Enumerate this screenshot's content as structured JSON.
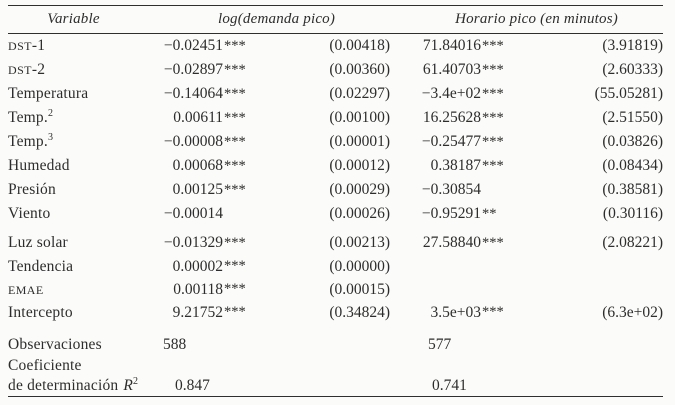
{
  "table": {
    "headers": {
      "variable": "Variable",
      "model1": "log(demanda pico)",
      "model2": "Horario pico (en minutos)"
    },
    "rows": [
      {
        "sc": "DST",
        "label": "-1",
        "coef1": "−0.02451",
        "stars1": "***",
        "se1": "(0.00418)",
        "coef2": "71.84016",
        "stars2": "***",
        "se2": "(3.91819)"
      },
      {
        "sc": "DST",
        "label": "-2",
        "coef1": "−0.02897",
        "stars1": "***",
        "se1": "(0.00360)",
        "coef2": "61.40703",
        "stars2": "***",
        "se2": "(2.60333)"
      },
      {
        "label": "Temperatura",
        "coef1": "−0.14064",
        "stars1": "***",
        "se1": "(0.02297)",
        "coef2": "−3.4e+02",
        "stars2": "***",
        "se2": "(55.05281)"
      },
      {
        "label": "Temp.",
        "sup": "2",
        "coef1": "0.00611",
        "stars1": "***",
        "se1": "(0.00100)",
        "coef2": "16.25628",
        "stars2": "***",
        "se2": "(2.51550)"
      },
      {
        "label": "Temp.",
        "sup": "3",
        "coef1": "−0.00008",
        "stars1": "***",
        "se1": "(0.00001)",
        "coef2": "−0.25477",
        "stars2": "***",
        "se2": "(0.03826)"
      },
      {
        "label": "Humedad",
        "coef1": "0.00068",
        "stars1": "***",
        "se1": "(0.00012)",
        "coef2": "0.38187",
        "stars2": "***",
        "se2": "(0.08434)"
      },
      {
        "label": "Presión",
        "coef1": "0.00125",
        "stars1": "***",
        "se1": "(0.00029)",
        "coef2": "−0.30854",
        "stars2": "",
        "se2": "(0.38581)"
      },
      {
        "label": "Viento",
        "coef1": "−0.00014",
        "stars1": "",
        "se1": "(0.00026)",
        "coef2": "−0.95291",
        "stars2": "**",
        "se2": "(0.30116)"
      },
      {
        "label": "Luz solar",
        "coef1": "−0.01329",
        "stars1": "***",
        "se1": "(0.00213)",
        "coef2": "27.58840",
        "stars2": "***",
        "se2": "(2.08221)"
      },
      {
        "label": "Tendencia",
        "coef1": "0.00002",
        "stars1": "***",
        "se1": "(0.00000)",
        "coef2": "",
        "stars2": "",
        "se2": ""
      },
      {
        "sc": "EMAE",
        "coef1": "0.00118",
        "stars1": "***",
        "se1": "(0.00015)",
        "coef2": "",
        "stars2": "",
        "se2": ""
      },
      {
        "label": "Intercepto",
        "coef1": "9.21752",
        "stars1": "***",
        "se1": "(0.34824)",
        "coef2": "3.5e+03",
        "stars2": "***",
        "se2": "(6.3e+02)"
      }
    ],
    "stats": {
      "observations": {
        "label": "Observaciones",
        "model1": "588",
        "model2": "577"
      },
      "r2": {
        "label_line1": "Coeficiente",
        "label_line2": "de determinación",
        "symbol": "R",
        "symbol_sup": "2",
        "model1": "0.847",
        "model2": "0.741"
      }
    }
  }
}
